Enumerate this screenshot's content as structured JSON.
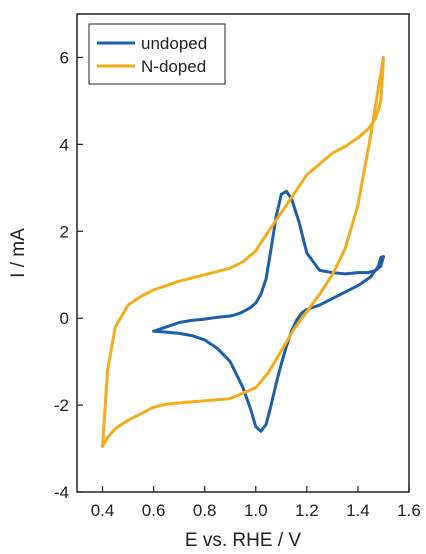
{
  "chart_data": {
    "type": "line",
    "title": "",
    "xlabel": "E vs. RHE / V",
    "ylabel": "I / mA",
    "xlim": [
      0.3,
      1.6
    ],
    "ylim": [
      -4,
      7
    ],
    "xticks": [
      0.4,
      0.6,
      0.8,
      1.0,
      1.2,
      1.4,
      1.6
    ],
    "xtick_labels": [
      "0.4",
      "0.6",
      "0.8",
      "1.0",
      "1.2",
      "1.4",
      "1.6"
    ],
    "yticks": [
      -4,
      -2,
      0,
      2,
      4,
      6
    ],
    "ytick_labels": [
      "-4",
      "-2",
      "0",
      "2",
      "4",
      "6"
    ],
    "grid": false,
    "legend_position": "top-left",
    "series": [
      {
        "name": "undoped",
        "color": "#1f5fa8",
        "x": [
          0.6,
          0.65,
          0.7,
          0.75,
          0.8,
          0.85,
          0.9,
          0.95,
          0.98,
          1.0,
          1.02,
          1.04,
          1.06,
          1.08,
          1.1,
          1.12,
          1.14,
          1.16,
          1.18,
          1.2,
          1.25,
          1.3,
          1.35,
          1.4,
          1.45,
          1.48,
          1.49,
          1.5,
          1.49,
          1.47,
          1.44,
          1.4,
          1.35,
          1.3,
          1.25,
          1.2,
          1.17,
          1.14,
          1.12,
          1.1,
          1.08,
          1.06,
          1.04,
          1.02,
          1.0,
          0.98,
          0.96,
          0.94,
          0.92,
          0.9,
          0.85,
          0.8,
          0.75,
          0.7,
          0.65,
          0.6
        ],
        "y": [
          -0.3,
          -0.32,
          -0.35,
          -0.4,
          -0.5,
          -0.7,
          -1.0,
          -1.6,
          -2.1,
          -2.5,
          -2.6,
          -2.45,
          -2.0,
          -1.5,
          -1.05,
          -0.65,
          -0.3,
          -0.05,
          0.12,
          0.2,
          0.3,
          0.45,
          0.6,
          0.75,
          0.95,
          1.2,
          1.4,
          1.42,
          1.2,
          1.1,
          1.05,
          1.05,
          1.02,
          1.05,
          1.1,
          1.5,
          2.2,
          2.75,
          2.92,
          2.85,
          2.35,
          1.6,
          0.9,
          0.55,
          0.35,
          0.25,
          0.18,
          0.12,
          0.08,
          0.05,
          0.02,
          -0.02,
          -0.05,
          -0.1,
          -0.2,
          -0.3
        ]
      },
      {
        "name": "N-doped",
        "color": "#f5ac1c",
        "x": [
          0.4,
          0.41,
          0.42,
          0.44,
          0.46,
          0.5,
          0.55,
          0.6,
          0.65,
          0.7,
          0.8,
          0.9,
          1.0,
          1.05,
          1.1,
          1.15,
          1.2,
          1.25,
          1.3,
          1.35,
          1.4,
          1.45,
          1.48,
          1.5,
          1.49,
          1.47,
          1.44,
          1.4,
          1.35,
          1.3,
          1.2,
          1.12,
          1.05,
          1.0,
          0.95,
          0.9,
          0.8,
          0.7,
          0.6,
          0.55,
          0.5,
          0.45,
          0.42,
          0.4
        ],
        "y": [
          -2.95,
          -2.85,
          -2.75,
          -2.6,
          -2.5,
          -2.35,
          -2.2,
          -2.05,
          -1.98,
          -1.95,
          -1.9,
          -1.85,
          -1.6,
          -1.25,
          -0.75,
          -0.25,
          0.15,
          0.55,
          1.0,
          1.6,
          2.6,
          4.2,
          5.3,
          6.0,
          5.0,
          4.6,
          4.35,
          4.15,
          3.95,
          3.8,
          3.3,
          2.6,
          2.0,
          1.55,
          1.3,
          1.15,
          1.0,
          0.85,
          0.65,
          0.5,
          0.3,
          -0.2,
          -1.2,
          -2.95
        ]
      }
    ]
  }
}
